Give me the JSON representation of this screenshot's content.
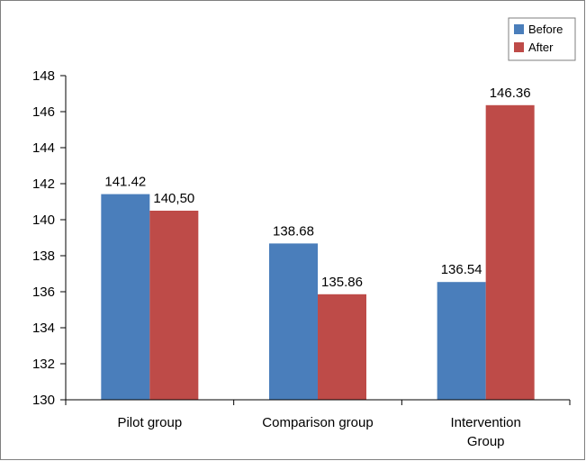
{
  "chart_data": {
    "type": "bar",
    "categories": [
      "Pilot group",
      "Comparison group",
      "Intervention\nGroup"
    ],
    "series": [
      {
        "name": "Before",
        "color": "#4a7ebb",
        "values": [
          141.42,
          138.68,
          136.54
        ],
        "labels": [
          "141.42",
          "138.68",
          "136.54"
        ]
      },
      {
        "name": "After",
        "color": "#be4b48",
        "values": [
          140.5,
          135.86,
          146.36
        ],
        "labels": [
          "140,50",
          "135.86",
          "146.36"
        ]
      }
    ],
    "ylim": [
      130,
      148
    ],
    "yticks": [
      130,
      132,
      134,
      136,
      138,
      140,
      142,
      144,
      146,
      148
    ],
    "grid": false,
    "legend_position": "top-right",
    "title": "",
    "xlabel": "",
    "ylabel": ""
  }
}
